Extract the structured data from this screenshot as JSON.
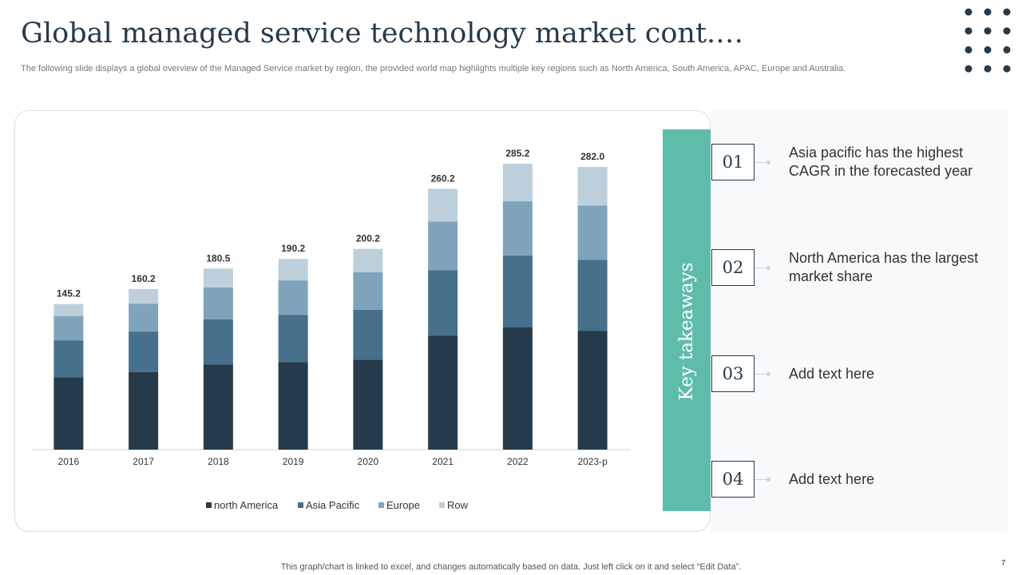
{
  "header": {
    "title": "Global managed service technology market cont.…",
    "subtitle": "The following slide displays a global overview of the Managed Service  market by region, the provided world map highlights multiple key regions such as North America, South America, APAC,  Europe and Australia."
  },
  "chart_data": {
    "type": "bar",
    "stacked": true,
    "categories": [
      "2016",
      "2017",
      "2018",
      "2019",
      "2020",
      "2021",
      "2022",
      "2023-p"
    ],
    "series": [
      {
        "name": "north America",
        "color": "#253a4a",
        "values": [
          72.3,
          77.3,
          85.1,
          87.3,
          89.8,
          113.8,
          122.2,
          118.6
        ]
      },
      {
        "name": "Asia Pacific",
        "color": "#46708c",
        "values": [
          36.7,
          40.5,
          44.8,
          47.2,
          49.7,
          65.2,
          71.5,
          70.7
        ]
      },
      {
        "name": "Europe",
        "color": "#7fa3bb",
        "values": [
          24.3,
          27.6,
          31.8,
          34.3,
          37.5,
          48.5,
          54.0,
          54.2
        ]
      },
      {
        "name": "Row",
        "color": "#bccfdb",
        "values": [
          11.9,
          14.8,
          18.8,
          21.4,
          23.2,
          32.7,
          37.5,
          38.5
        ]
      }
    ],
    "totals": [
      145.2,
      160.2,
      180.5,
      190.2,
      200.2,
      260.2,
      285.2,
      282.0
    ],
    "total_labels": [
      "145.2",
      "160.2",
      "180.5",
      "190.2",
      "200.2",
      "260.2",
      "285.2",
      "282.0"
    ]
  },
  "side_panel": {
    "heading": "Key takeaways",
    "items": [
      {
        "number": "01",
        "text": "Asia pacific has the highest CAGR in the forecasted year"
      },
      {
        "number": "02",
        "text": "North America has the largest market share"
      },
      {
        "number": "03",
        "text": "Add text here"
      },
      {
        "number": "04",
        "text": "Add text here"
      }
    ]
  },
  "footer": {
    "note": "This graph/chart is linked to excel,  and changes automatically based on data. Just left click on it and select “Edit Data”.",
    "page": "7"
  }
}
